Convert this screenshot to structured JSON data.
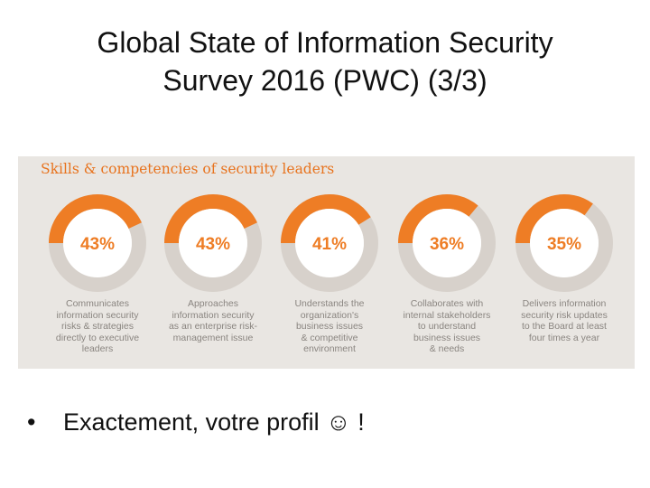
{
  "slide": {
    "title_line1": "Global State of Information Security",
    "title_line2": "Survey 2016 (PWC) (3/3)",
    "bullet_marker": "•",
    "bullet_text": "Exactement, votre profil ☺ !"
  },
  "infographic": {
    "title": "Skills & competencies of security leaders",
    "colors": {
      "accent": "#ee7d25",
      "track": "#d7d1cb",
      "background": "#e9e6e2",
      "text": "#8a8580"
    },
    "stats": [
      {
        "value": "43%",
        "percent": 43,
        "description": [
          "Communicates",
          "information security",
          "risks & strategies",
          "directly to executive",
          "leaders"
        ]
      },
      {
        "value": "43%",
        "percent": 43,
        "description": [
          "Approaches",
          "information security",
          "as an enterprise risk-",
          "management issue"
        ]
      },
      {
        "value": "41%",
        "percent": 41,
        "description": [
          "Understands the",
          "organization's",
          "business issues",
          "& competitive",
          "environment"
        ]
      },
      {
        "value": "36%",
        "percent": 36,
        "description": [
          "Collaborates with",
          "internal stakeholders",
          "to understand",
          "business issues",
          "& needs"
        ]
      },
      {
        "value": "35%",
        "percent": 35,
        "description": [
          "Delivers information",
          "security risk updates",
          "to the Board at least",
          "four times a year"
        ]
      }
    ]
  }
}
